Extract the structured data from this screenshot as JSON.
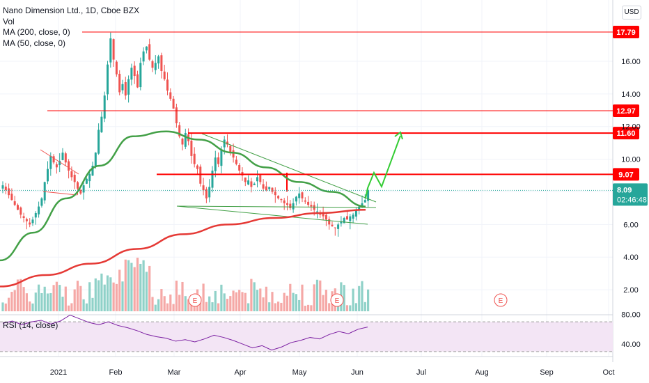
{
  "header": {
    "symbol_line": "Nano Dimension Ltd., 1D, Cboe BZX",
    "vol_label": "Vol",
    "ma200_label": "MA (200, close, 0)",
    "ma50_label": "MA (50, close, 0)",
    "currency": "USD"
  },
  "rsi_label": "RSI (14, close)",
  "colors": {
    "up": "#26a69a",
    "down": "#ef5350",
    "vol_up": "#8fd1c8",
    "vol_down": "#f5a8a6",
    "ma200": "#e53935",
    "ma50": "#43a047",
    "level_line": "#ff0000",
    "rsi_line": "#7b1fa2",
    "rsi_band": "#f3e5f5",
    "arrow": "#33cc33"
  },
  "earnings_marker": "E",
  "chart_data": {
    "type": "candlestick",
    "y_ticks": [
      "16.00",
      "14.00",
      "12.00",
      "10.00",
      "8.00",
      "6.00",
      "4.00",
      "2.00"
    ],
    "x_ticks": [
      "2021",
      "Feb",
      "Mar",
      "Apr",
      "May",
      "Jun",
      "Jul",
      "Aug",
      "Sep",
      "Oct"
    ],
    "horizontal_levels": [
      {
        "value": 17.79,
        "label": "17.79"
      },
      {
        "value": 12.97,
        "label": "12.97"
      },
      {
        "value": 11.6,
        "label": "11.60"
      },
      {
        "value": 9.07,
        "label": "9.07"
      }
    ],
    "last_price": {
      "value": 8.09,
      "label": "8.09",
      "countdown": "02:46:48"
    },
    "rsi": {
      "ticks": [
        "80.00",
        "40.00"
      ],
      "upper": 70,
      "lower": 30
    },
    "projection_path": [
      [
        9.07,
        8.0
      ],
      [
        9.07,
        8.7
      ],
      [
        9.07,
        9.1
      ],
      [
        9.07,
        8.4
      ],
      [
        11.6,
        11.4
      ]
    ],
    "candles_close": [
      8.4,
      8.1,
      7.8,
      7.5,
      7.2,
      6.9,
      6.6,
      6.4,
      6.2,
      6.0,
      6.3,
      6.7,
      7.1,
      7.6,
      8.6,
      9.4,
      10.2,
      9.8,
      9.5,
      9.9,
      10.4,
      9.8,
      9.3,
      8.9,
      8.6,
      8.2,
      7.9,
      8.4,
      8.8,
      9.1,
      9.6,
      10.4,
      11.8,
      12.6,
      13.9,
      15.8,
      17.4,
      16.1,
      15.2,
      14.1,
      14.6,
      13.9,
      14.9,
      15.6,
      15.1,
      14.4,
      15.9,
      16.6,
      16.9,
      16.1,
      15.6,
      15.9,
      16.3,
      15.4,
      14.9,
      14.2,
      13.7,
      13.1,
      12.2,
      11.4,
      10.9,
      11.6,
      11.1,
      10.2,
      9.7,
      9.4,
      8.5,
      8.1,
      7.6,
      8.3,
      9.3,
      10.1,
      9.7,
      10.6,
      11.2,
      10.9,
      10.4,
      10.1,
      9.7,
      9.3,
      9.0,
      8.6,
      8.7,
      8.3,
      8.5,
      8.9,
      8.6,
      8.2,
      8.1,
      8.3,
      8.0,
      7.8,
      7.6,
      7.5,
      7.3,
      7.2,
      7.0,
      7.3,
      7.7,
      7.9,
      7.6,
      7.4,
      7.2,
      7.1,
      6.9,
      6.8,
      6.6,
      6.5,
      6.3,
      6.0,
      5.9,
      5.8,
      6.0,
      6.2,
      6.4,
      6.3,
      6.5,
      6.6,
      6.9,
      7.1,
      7.3,
      7.5,
      8.1
    ],
    "ma50_values": [
      3.8,
      5.5,
      7.6,
      9.6,
      11.4,
      11.7,
      11.2,
      10.4,
      9.5,
      8.6,
      8.0,
      7.1
    ],
    "ma200_values": [
      2.2,
      2.9,
      3.6,
      4.5,
      5.4,
      6.0,
      6.4,
      6.7,
      6.9
    ],
    "rsi_values": [
      68,
      71,
      66,
      70,
      72,
      67,
      71,
      79,
      74,
      69,
      66,
      70,
      65,
      62,
      58,
      53,
      50,
      48,
      44,
      46,
      43,
      47,
      52,
      49,
      45,
      40,
      35,
      38,
      32,
      36,
      42,
      45,
      49,
      47,
      53,
      57,
      54,
      60,
      63
    ]
  }
}
